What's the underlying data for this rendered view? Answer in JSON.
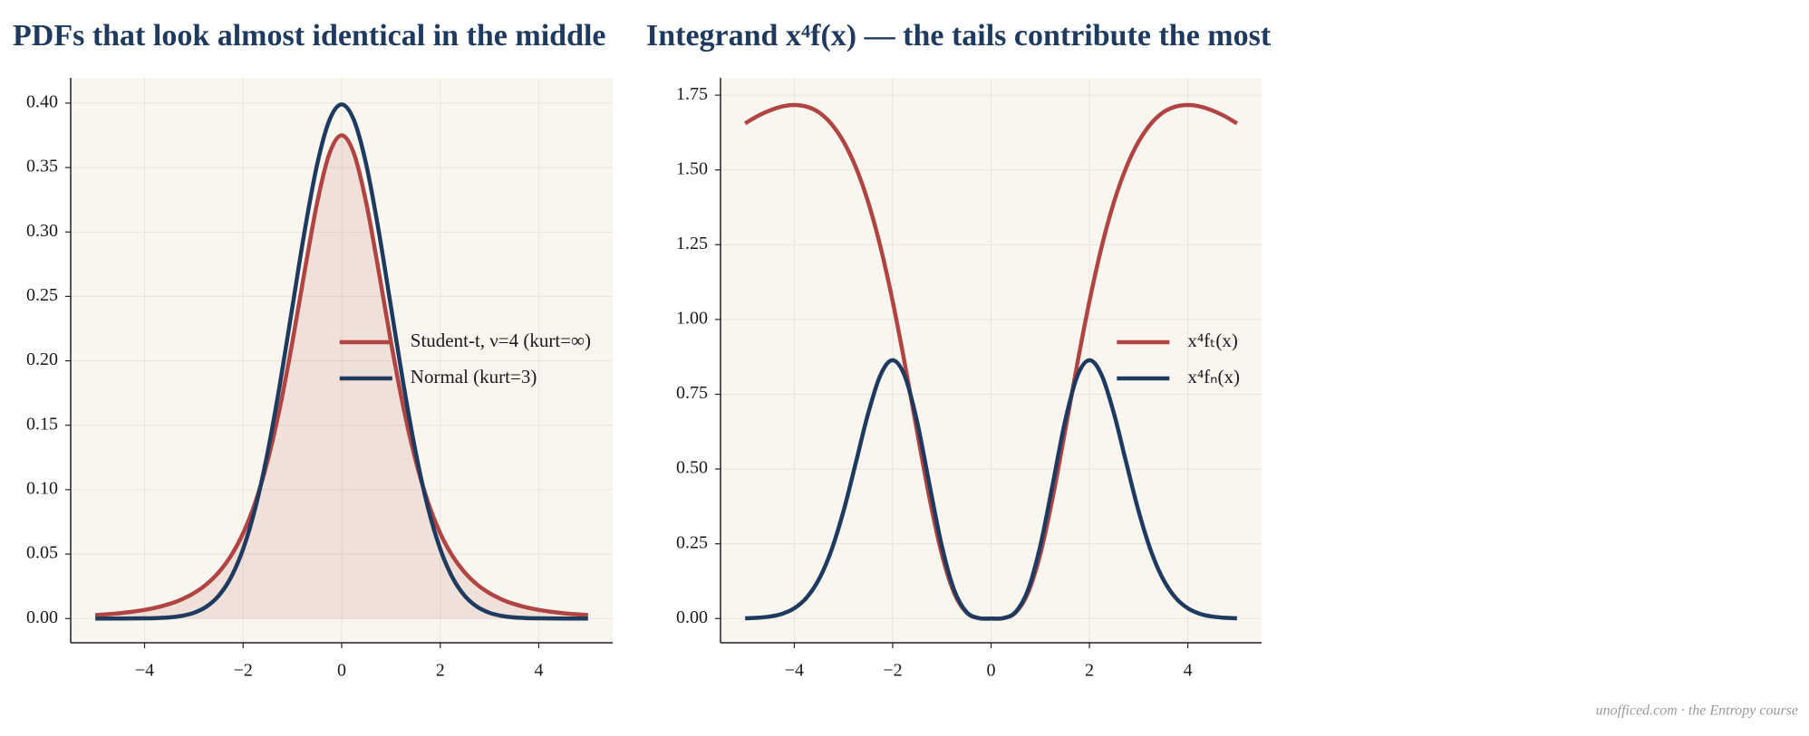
{
  "chart_data": [
    {
      "type": "line",
      "title": "PDFs that look almost identical in the middle",
      "x": [
        -5,
        -4.75,
        -4.5,
        -4.25,
        -4,
        -3.75,
        -3.5,
        -3.25,
        -3,
        -2.75,
        -2.5,
        -2.25,
        -2,
        -1.75,
        -1.5,
        -1.25,
        -1,
        -0.75,
        -0.5,
        -0.25,
        0,
        0.25,
        0.5,
        0.75,
        1,
        1.25,
        1.5,
        1.75,
        2,
        2.25,
        2.5,
        2.75,
        3,
        3.25,
        3.5,
        3.75,
        4,
        4.25,
        4.5,
        4.75,
        5
      ],
      "series": [
        {
          "name": "Student-t, ν=4 (kurt=∞)",
          "color": "#b04442",
          "fill": true,
          "values": [
            0.00265,
            0.0033,
            0.00414,
            0.00525,
            0.00671,
            0.00866,
            0.01128,
            0.01483,
            0.01969,
            0.02639,
            0.03567,
            0.04854,
            0.06629,
            0.09053,
            0.12288,
            0.16445,
            0.21466,
            0.26988,
            0.32226,
            0.36074,
            0.375,
            0.36074,
            0.32226,
            0.26988,
            0.21466,
            0.16445,
            0.12288,
            0.09053,
            0.06629,
            0.04854,
            0.03567,
            0.02639,
            0.01969,
            0.01483,
            0.01128,
            0.00866,
            0.00671,
            0.00525,
            0.00414,
            0.0033,
            0.00265
          ]
        },
        {
          "name": "Normal (kurt=3)",
          "color": "#1f3a5f",
          "fill": false,
          "values": [
            1.5e-06,
            5e-06,
            1.6e-05,
            4.8e-05,
            0.000134,
            0.000353,
            0.000873,
            0.00203,
            0.00443,
            0.0091,
            0.01753,
            0.03174,
            0.05399,
            0.08628,
            0.12952,
            0.18265,
            0.24197,
            0.30114,
            0.35207,
            0.38667,
            0.39894,
            0.38667,
            0.35207,
            0.30114,
            0.24197,
            0.18265,
            0.12952,
            0.08628,
            0.05399,
            0.03174,
            0.01753,
            0.0091,
            0.00443,
            0.00203,
            0.000873,
            0.000353,
            0.000134,
            4.8e-05,
            1.6e-05,
            5e-06,
            1.5e-06
          ]
        }
      ],
      "xlim": [
        -5.5,
        5.5
      ],
      "ylim": [
        -0.0188,
        0.4196
      ],
      "xticks": [
        {
          "value": -4,
          "label": "−4"
        },
        {
          "value": -2,
          "label": "−2"
        },
        0,
        2,
        4
      ],
      "yticks": [
        {
          "value": 0,
          "label": "0.00"
        },
        {
          "value": 0.05,
          "label": "0.05"
        },
        {
          "value": 0.1,
          "label": "0.10"
        },
        {
          "value": 0.15,
          "label": "0.15"
        },
        {
          "value": 0.2,
          "label": "0.20"
        },
        {
          "value": 0.25,
          "label": "0.25"
        },
        {
          "value": 0.3,
          "label": "0.30"
        },
        {
          "value": 0.35,
          "label": "0.35"
        },
        {
          "value": 0.4,
          "label": "0.40"
        }
      ],
      "grid": true,
      "legend": "center right"
    },
    {
      "type": "line",
      "title": "Integrand x⁴f(x) — the tails contribute the most",
      "x": [
        -5,
        -4.75,
        -4.5,
        -4.25,
        -4,
        -3.75,
        -3.5,
        -3.25,
        -3,
        -2.75,
        -2.5,
        -2.25,
        -2,
        -1.75,
        -1.5,
        -1.25,
        -1,
        -0.75,
        -0.5,
        -0.25,
        0,
        0.25,
        0.5,
        0.75,
        1,
        1.25,
        1.5,
        1.75,
        2,
        2.25,
        2.5,
        2.75,
        3,
        3.25,
        3.5,
        3.75,
        4,
        4.25,
        4.5,
        4.75,
        5
      ],
      "series": [
        {
          "name": "x⁴fₜ(x)",
          "color": "#b04442",
          "fill": false,
          "values": [
            1.6556,
            1.6799,
            1.6989,
            1.7122,
            1.7172,
            1.7117,
            1.6927,
            1.6546,
            1.5949,
            1.5093,
            1.3934,
            1.244,
            1.0607,
            0.8491,
            0.6221,
            0.4015,
            0.2147,
            0.0854,
            0.0201,
            0.0014,
            0,
            0.0014,
            0.0201,
            0.0854,
            0.2147,
            0.4015,
            0.6221,
            0.8491,
            1.0607,
            1.244,
            1.3934,
            1.5093,
            1.5949,
            1.6546,
            1.6927,
            1.7117,
            1.7172,
            1.7122,
            1.6989,
            1.6799,
            1.6556
          ]
        },
        {
          "name": "x⁴fₙ(x)",
          "color": "#1f3a5f",
          "fill": false,
          "values": [
            0.0009,
            0.0026,
            0.0066,
            0.0156,
            0.0343,
            0.0698,
            0.131,
            0.2264,
            0.359,
            0.5204,
            0.6848,
            0.8135,
            0.8638,
            0.8092,
            0.6557,
            0.4459,
            0.242,
            0.0953,
            0.022,
            0.0015,
            0,
            0.0015,
            0.022,
            0.0953,
            0.242,
            0.4459,
            0.6557,
            0.8092,
            0.8638,
            0.8135,
            0.6848,
            0.5204,
            0.359,
            0.2264,
            0.131,
            0.0698,
            0.0343,
            0.0156,
            0.0066,
            0.0026,
            0.0009
          ]
        }
      ],
      "xlim": [
        -5.5,
        5.5
      ],
      "ylim": [
        -0.081,
        1.808
      ],
      "xticks": [
        {
          "value": -4,
          "label": "−4"
        },
        {
          "value": -2,
          "label": "−2"
        },
        0,
        2,
        4
      ],
      "yticks": [
        {
          "value": 0,
          "label": "0.00"
        },
        {
          "value": 0.25,
          "label": "0.25"
        },
        {
          "value": 0.5,
          "label": "0.50"
        },
        {
          "value": 0.75,
          "label": "0.75"
        },
        {
          "value": 1,
          "label": "1.00"
        },
        {
          "value": 1.25,
          "label": "1.25"
        },
        {
          "value": 1.5,
          "label": "1.50"
        },
        {
          "value": 1.75,
          "label": "1.75"
        }
      ],
      "grid": true,
      "legend": "center right"
    }
  ],
  "footer": "unofficed.com · the Entropy course"
}
